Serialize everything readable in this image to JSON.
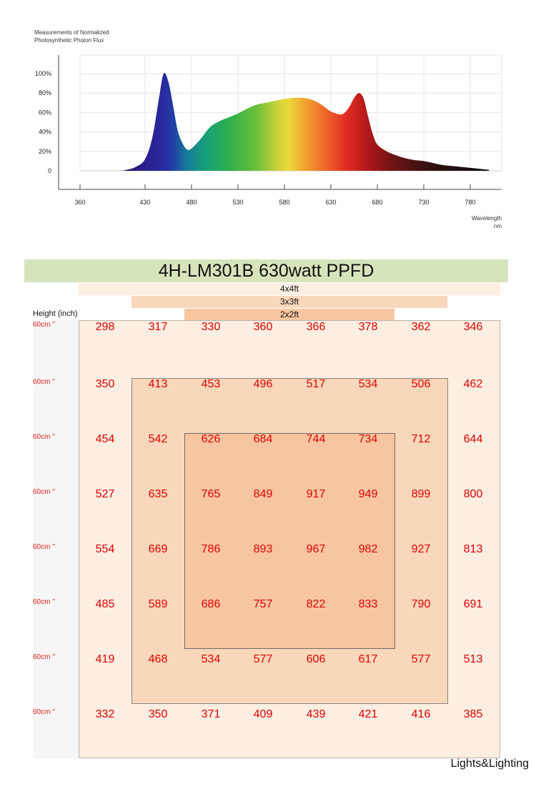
{
  "chart_data": [
    {
      "type": "area",
      "title": "Measurements of Normalized Photosynthetic Photon Flux",
      "xlabel": "Wavelength nm",
      "ylabel": "",
      "x_ticks": [
        360,
        430,
        480,
        530,
        580,
        630,
        680,
        730,
        780
      ],
      "y_tick_values": [
        0,
        20,
        40,
        60,
        80,
        100
      ],
      "y_ticks": [
        "0",
        "20%",
        "40%",
        "60%",
        "80%",
        "100%"
      ],
      "xlim": [
        360,
        800
      ],
      "ylim": [
        0,
        115
      ],
      "grid": true,
      "x": [
        360,
        400,
        410,
        420,
        430,
        438,
        445,
        450,
        455,
        460,
        465,
        470,
        475,
        480,
        490,
        500,
        510,
        520,
        530,
        540,
        550,
        560,
        570,
        580,
        590,
        600,
        610,
        620,
        630,
        640,
        645,
        650,
        655,
        660,
        665,
        670,
        675,
        680,
        690,
        700,
        710,
        720,
        730,
        740,
        750,
        760,
        770,
        780,
        790,
        800
      ],
      "y": [
        0,
        0,
        1,
        4,
        12,
        35,
        75,
        100,
        92,
        68,
        42,
        29,
        22,
        23,
        33,
        45,
        51,
        55,
        59,
        64,
        68,
        70,
        72,
        74,
        75,
        75,
        73,
        68,
        61,
        58,
        60,
        66,
        75,
        80,
        75,
        56,
        38,
        27,
        20,
        16,
        13,
        11,
        10,
        8,
        6,
        5,
        4,
        3,
        2,
        1
      ]
    },
    {
      "type": "heatmap",
      "title": "4H-LM301B 630watt PPFD",
      "row_label_header": "Height (inch)",
      "zone_labels": [
        "4x4ft",
        "3x3ft",
        "2x2ft"
      ],
      "row_labels": [
        "60cm ''",
        "60cm ''",
        "60cm ''",
        "60cm ''",
        "60cm ''",
        "60cm ''",
        "60cm ''",
        "60cm ''"
      ],
      "rows": [
        [
          298,
          317,
          330,
          360,
          366,
          378,
          362,
          346
        ],
        [
          350,
          413,
          453,
          496,
          517,
          534,
          506,
          462
        ],
        [
          454,
          542,
          626,
          684,
          744,
          734,
          712,
          644
        ],
        [
          527,
          635,
          765,
          849,
          917,
          949,
          899,
          800
        ],
        [
          554,
          669,
          786,
          893,
          967,
          982,
          927,
          813
        ],
        [
          485,
          589,
          686,
          757,
          822,
          833,
          790,
          691
        ],
        [
          419,
          468,
          534,
          577,
          606,
          617,
          577,
          513
        ],
        [
          332,
          350,
          371,
          409,
          439,
          421,
          416,
          385
        ]
      ]
    }
  ],
  "brand": "Lights&Lighting",
  "colors": {
    "title_bg": "#d6e4bc",
    "value_text": "#e00000",
    "zone_4x4": "#fdeee2",
    "zone_3x3": "#f9d7ba",
    "zone_2x2": "#f7c6a1"
  }
}
